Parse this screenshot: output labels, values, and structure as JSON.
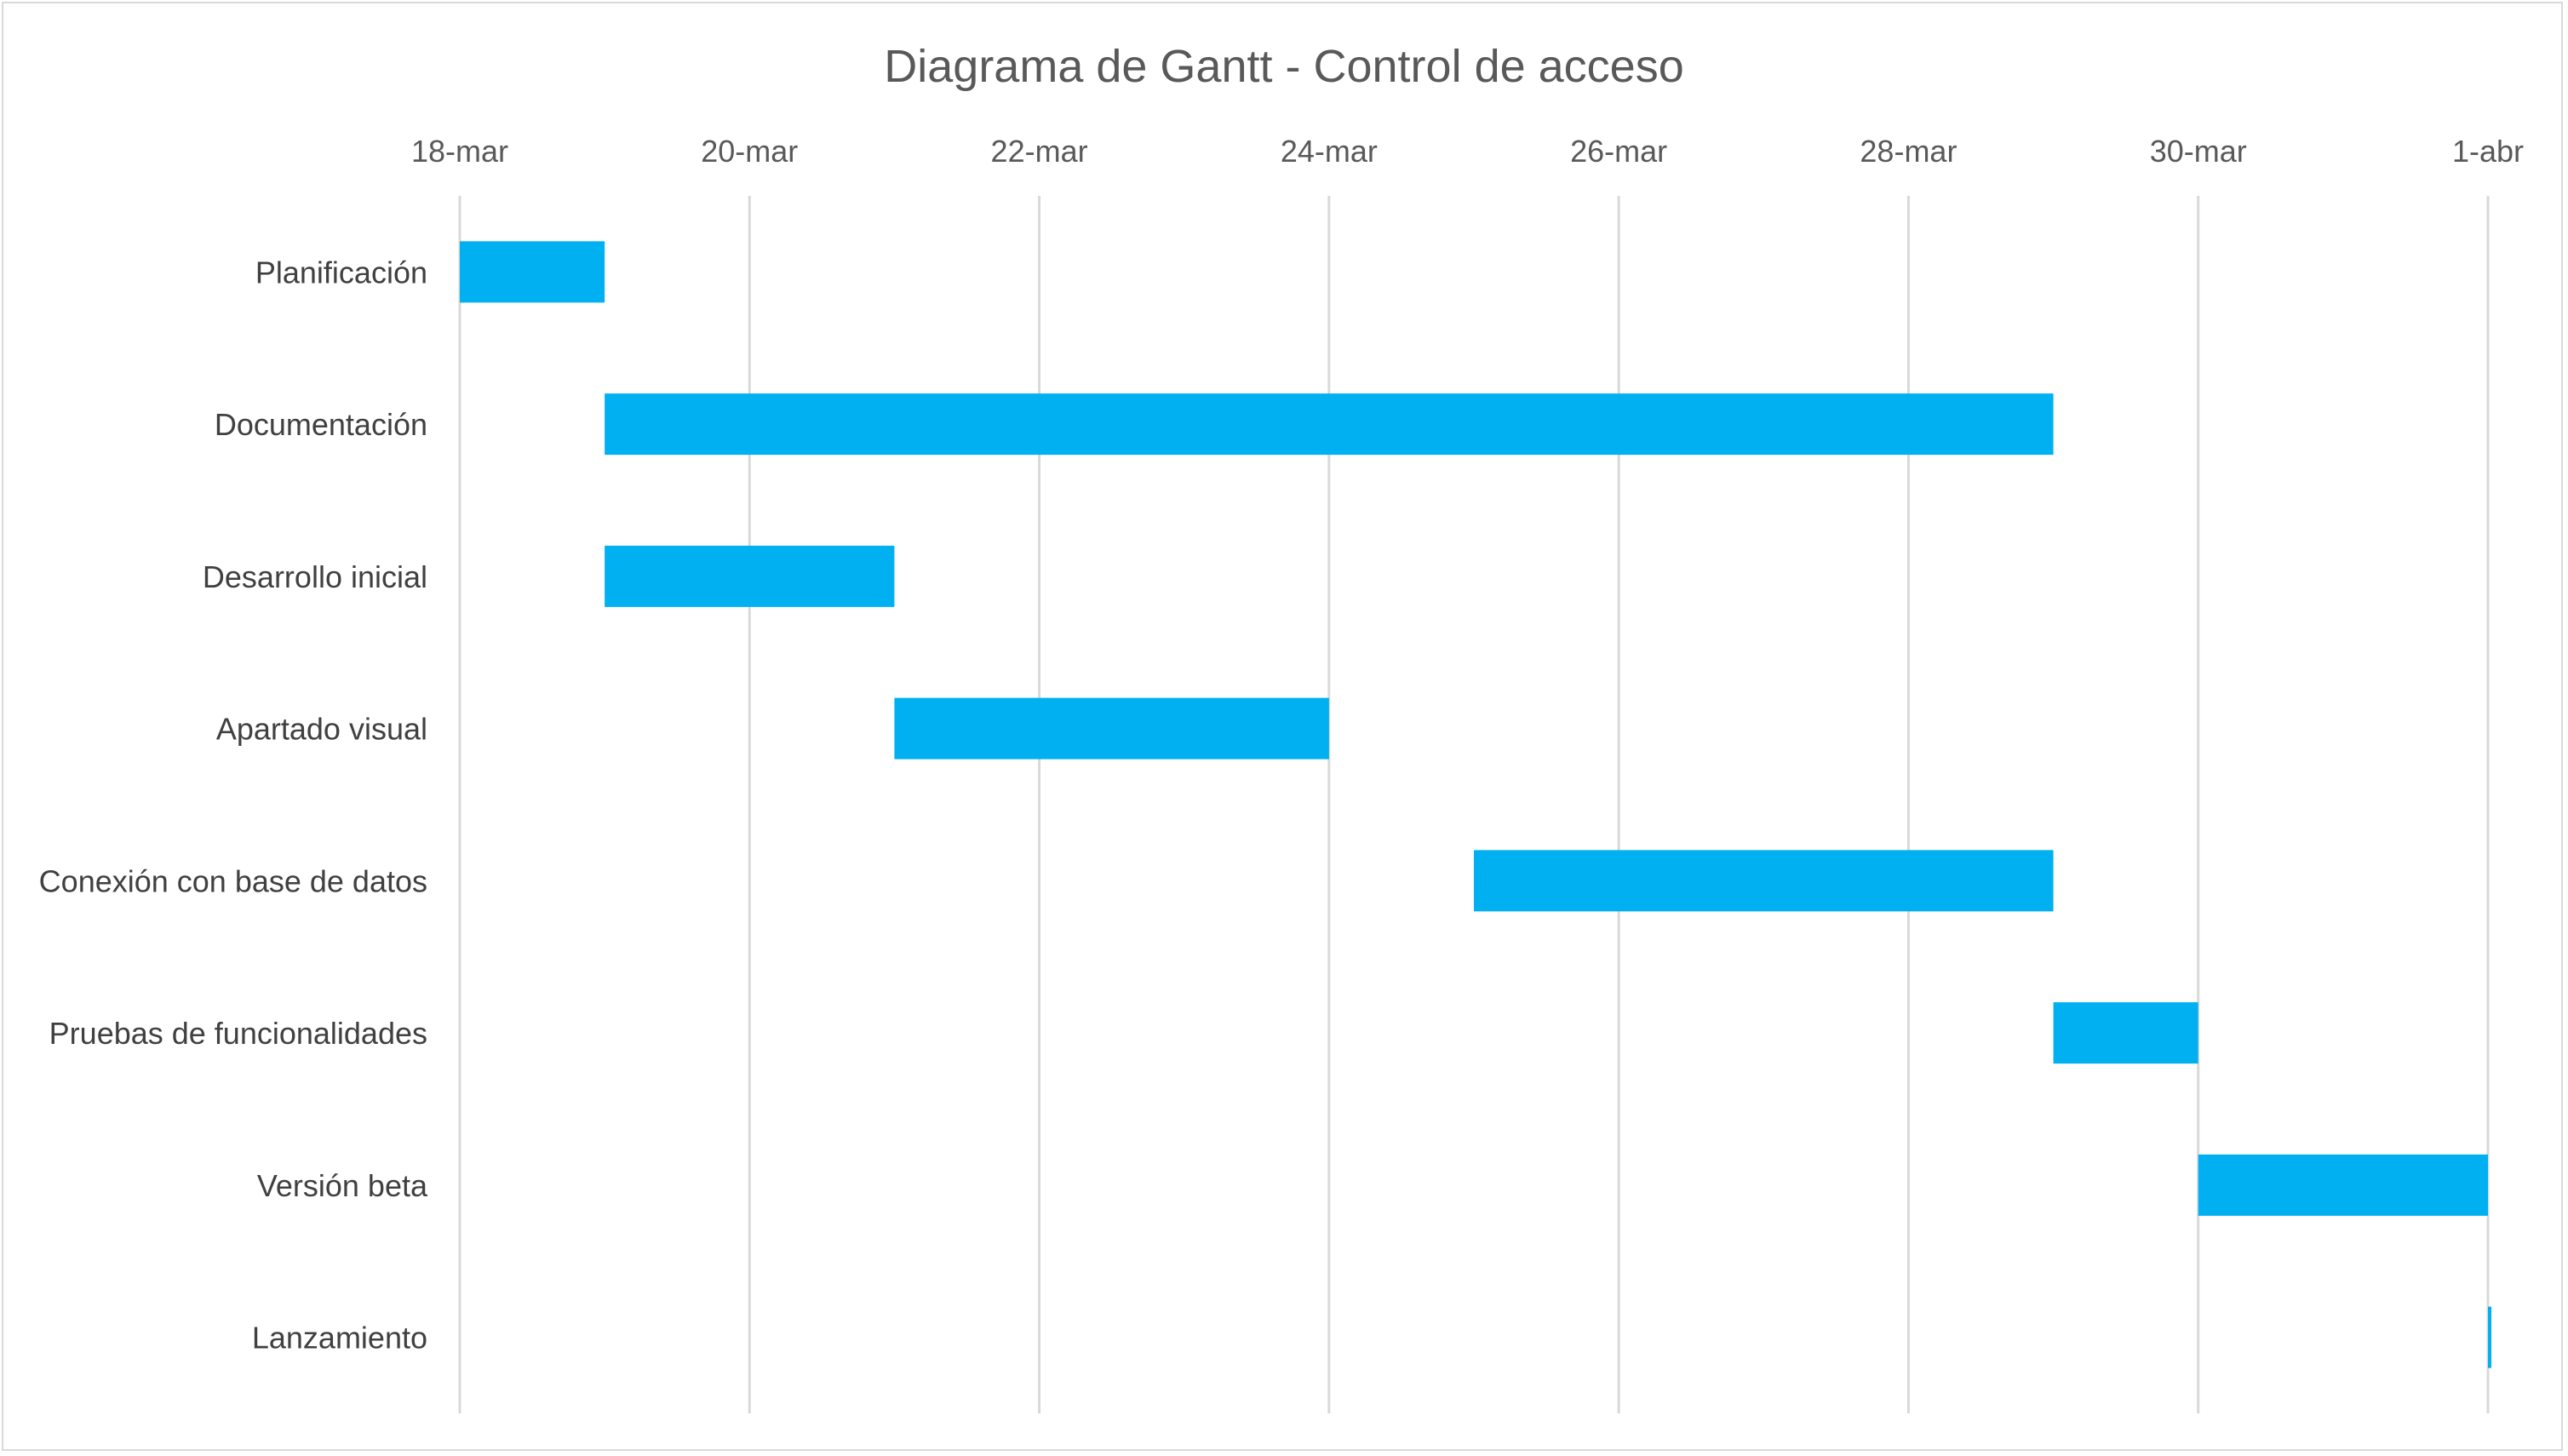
{
  "chart_data": {
    "type": "bar",
    "orientation": "horizontal-gantt",
    "title": "Diagrama de Gantt - Control de acceso",
    "xlabel": "",
    "ylabel": "",
    "x_axis_position": "top",
    "x_ticks": [
      "18-mar",
      "20-mar",
      "22-mar",
      "24-mar",
      "26-mar",
      "28-mar",
      "30-mar",
      "1-abr"
    ],
    "xlim": [
      "2024-03-18",
      "2024-04-01"
    ],
    "grid": true,
    "legend": "none",
    "bar_color": "#00B0F0",
    "categories": [
      "Planificación",
      "Documentación",
      "Desarrollo inicial",
      "Apartado visual",
      "Conexión con base de datos",
      "Pruebas de funcionalidades",
      "Versión beta",
      "Lanzamiento"
    ],
    "start": [
      "2024-03-18",
      "2024-03-19",
      "2024-03-19",
      "2024-03-21",
      "2024-03-25",
      "2024-03-29",
      "2024-03-30",
      "2024-04-01"
    ],
    "end": [
      "2024-03-19",
      "2024-03-29",
      "2024-03-21",
      "2024-03-24",
      "2024-03-29",
      "2024-03-30",
      "2024-04-01",
      "2024-04-01"
    ]
  }
}
